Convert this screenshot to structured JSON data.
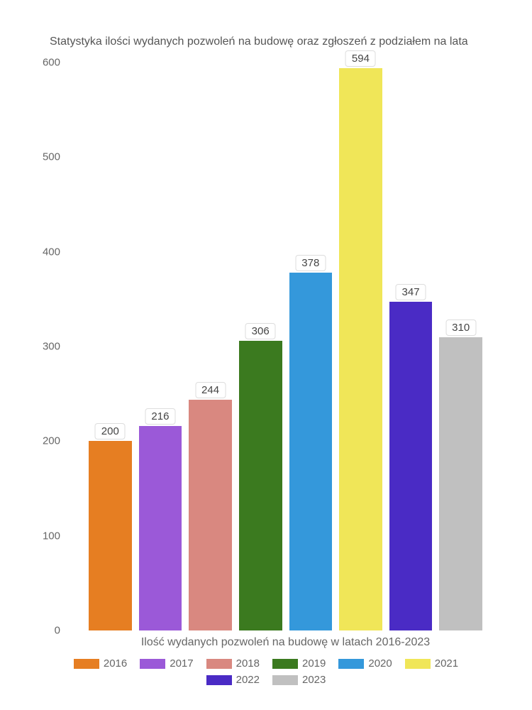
{
  "chart": {
    "type": "bar",
    "title": "Statystyka ilości wydanych pozwoleń na budowę oraz zgłoszeń z podziałem na lata",
    "title_fontsize": 16,
    "title_color": "#555555",
    "x_label": "Ilość wydanych pozwoleń na budowę w latach 2016-2023",
    "x_label_fontsize": 16,
    "x_label_color": "#666666",
    "ylim": [
      0,
      600
    ],
    "ytick_step": 100,
    "ytick_labels": [
      "0",
      "100",
      "200",
      "300",
      "400",
      "500",
      "600"
    ],
    "ytick_fontsize": 15,
    "ytick_color": "#666666",
    "background_color": "#ffffff",
    "bar_width": 0.85,
    "data_label_bg": "#ffffff",
    "data_label_border": "#dddddd",
    "data_label_fontsize": 15,
    "legend_fontsize": 15,
    "legend_color": "#666666",
    "series": [
      {
        "year": "2016",
        "value": 200,
        "color": "#e67e22"
      },
      {
        "year": "2017",
        "value": 216,
        "color": "#9b59d8"
      },
      {
        "year": "2018",
        "value": 244,
        "color": "#d98880"
      },
      {
        "year": "2019",
        "value": 306,
        "color": "#3b7a1f"
      },
      {
        "year": "2020",
        "value": 378,
        "color": "#3498db"
      },
      {
        "year": "2021",
        "value": 594,
        "color": "#f0e658"
      },
      {
        "year": "2022",
        "value": 347,
        "color": "#4a2bc5"
      },
      {
        "year": "2023",
        "value": 310,
        "color": "#c0c0c0"
      }
    ]
  }
}
